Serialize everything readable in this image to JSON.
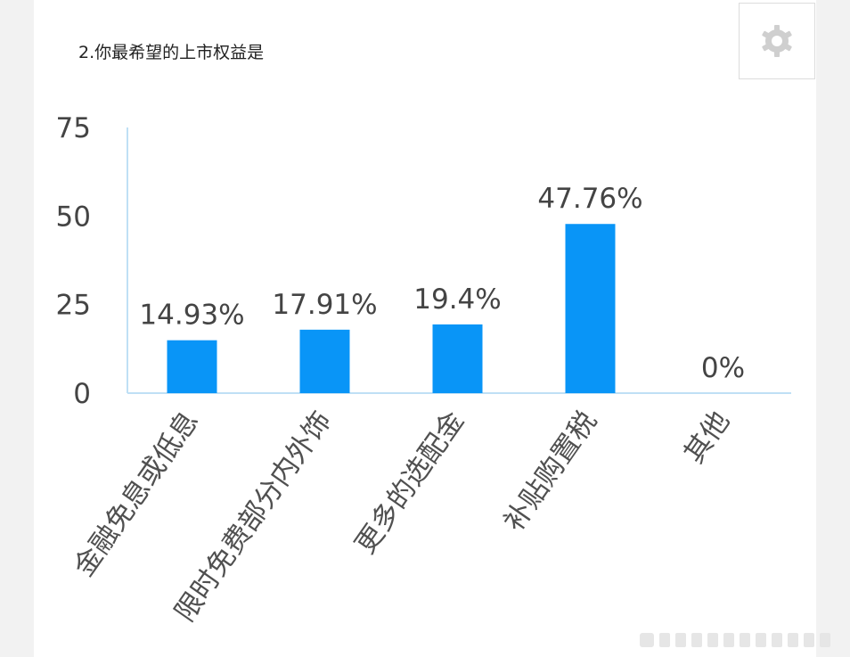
{
  "header": {
    "title": "2.你最希望的上市权益是"
  },
  "settings_icon": "gear-icon",
  "colors": {
    "bar": "#0995f7",
    "axis": "#bfe0f5",
    "text": "#444444",
    "label": "#505050"
  },
  "chart_data": {
    "type": "bar",
    "title": "2.你最希望的上市权益是",
    "categories": [
      "金融免息或低息",
      "限时免费部分内外饰",
      "更多的选配金",
      "补贴购置税",
      "其他"
    ],
    "values": [
      14.93,
      17.91,
      19.4,
      47.76,
      0
    ],
    "value_labels": [
      "14.93%",
      "17.91%",
      "19.4%",
      "47.76%",
      "0%"
    ],
    "y_ticks": [
      "0",
      "25",
      "50",
      "75"
    ],
    "ylim": [
      0,
      75
    ],
    "grid": false,
    "legend": "none"
  }
}
